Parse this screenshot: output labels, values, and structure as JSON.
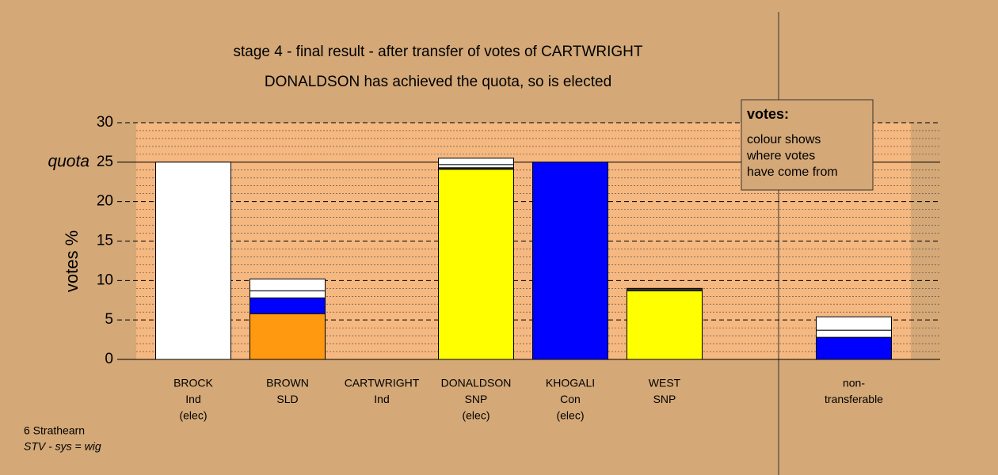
{
  "chart_data": {
    "type": "stacked_bar",
    "title": "stage 4 - final result - after transfer of votes of CARTWRIGHT",
    "subtitle": "DONALDSON has achieved the quota, so is elected",
    "y_label": "votes %",
    "categories": [
      [
        "BROCK",
        "Ind",
        "(elec)"
      ],
      [
        "BROWN",
        "SLD"
      ],
      [
        "CARTWRIGHT",
        "Ind"
      ],
      [
        "DONALDSON",
        "SNP",
        "(elec)"
      ],
      [
        "KHOGALI",
        "Con",
        "(elec)"
      ],
      [
        "WEST",
        "SNP"
      ],
      [
        "non-",
        "transferable"
      ]
    ],
    "series": [
      {
        "color": "#ff9910",
        "values": [
          null,
          5.8,
          null,
          null,
          null,
          null,
          null
        ]
      },
      {
        "color": "#ffff00",
        "values": [
          null,
          null,
          null,
          24.1,
          null,
          8.7,
          null
        ]
      },
      {
        "color": "#0000ff",
        "values": [
          null,
          2,
          null,
          null,
          25,
          null,
          2.8
        ]
      },
      {
        "color": "#333333",
        "values": [
          null,
          null,
          null,
          0.2,
          null,
          0.3,
          null
        ]
      },
      {
        "color": "#ffffff",
        "values": [
          25,
          0.9,
          null,
          0.4,
          null,
          null,
          0.9
        ]
      },
      {
        "color": "#ffffff",
        "values": [
          null,
          1.5,
          null,
          0.8,
          null,
          null,
          1.7
        ]
      }
    ],
    "ylim": [
      0,
      30
    ],
    "yticks": [
      0,
      5,
      10,
      15,
      20,
      25,
      30
    ],
    "quota": {
      "value": 25,
      "label": "quota"
    },
    "minor_grid": 1,
    "legend": {
      "title": "votes:",
      "lines": [
        "colour shows",
        "where votes",
        "have come from"
      ]
    }
  },
  "footer": [
    "6 Strathearn",
    "STV - sys = wig"
  ]
}
